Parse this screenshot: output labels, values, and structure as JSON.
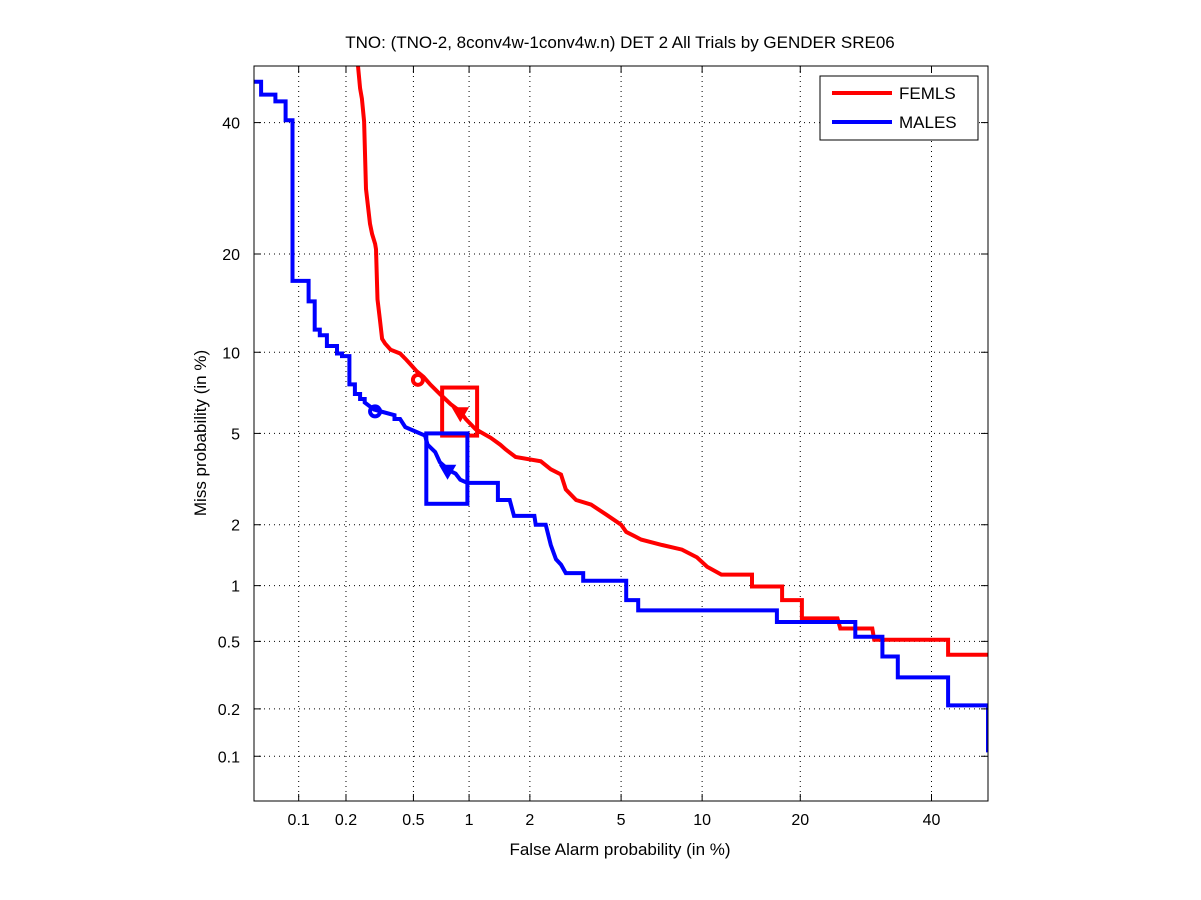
{
  "chart_data": {
    "type": "line",
    "subtype": "DET (probit-scaled axes)",
    "title": "TNO: (TNO-2, 8conv4w-1conv4w.n) DET 2 All Trials by GENDER SRE06",
    "xlabel": "False Alarm probability (in %)",
    "ylabel": "Miss probability (in %)",
    "xscale": "probit",
    "yscale": "probit",
    "xlim": [
      0.05,
      50
    ],
    "ylim": [
      0.05,
      50
    ],
    "grid": true,
    "xticks": [
      0.1,
      0.2,
      0.5,
      1,
      2,
      5,
      10,
      20,
      40
    ],
    "xtick_labels": [
      "0.1",
      "0.2",
      "0.5",
      "1",
      "2",
      "5",
      "10",
      "20",
      "40"
    ],
    "yticks": [
      0.1,
      0.2,
      0.5,
      1,
      2,
      5,
      10,
      20,
      40
    ],
    "ytick_labels": [
      "0.1",
      "0.2",
      "0.5",
      "1",
      "2",
      "5",
      "10",
      "20",
      "40"
    ],
    "legend": {
      "placement": "top-right",
      "entries": [
        "FEMLS",
        "MALES"
      ]
    },
    "series": [
      {
        "name": "FEMLS",
        "color": "#ff0000",
        "points": [
          [
            0.237,
            50.3
          ],
          [
            0.244,
            46
          ],
          [
            0.25,
            44.2
          ],
          [
            0.258,
            40.2
          ],
          [
            0.265,
            29.1
          ],
          [
            0.28,
            24
          ],
          [
            0.288,
            22.6
          ],
          [
            0.3,
            21.3
          ],
          [
            0.304,
            20.6
          ],
          [
            0.31,
            14.8
          ],
          [
            0.32,
            12.9
          ],
          [
            0.33,
            11.1
          ],
          [
            0.344,
            10.7
          ],
          [
            0.37,
            10.2
          ],
          [
            0.42,
            9.9
          ],
          [
            0.45,
            9.5
          ],
          [
            0.48,
            9.1
          ],
          [
            0.52,
            8.6
          ],
          [
            0.57,
            8.2
          ],
          [
            0.62,
            7.7
          ],
          [
            0.7,
            7.1
          ],
          [
            0.8,
            6.5
          ],
          [
            0.9,
            6.1
          ],
          [
            0.96,
            5.7
          ],
          [
            1.08,
            5.2
          ],
          [
            1.29,
            4.8
          ],
          [
            1.44,
            4.5
          ],
          [
            1.53,
            4.3
          ],
          [
            1.71,
            4.0
          ],
          [
            2.25,
            3.84
          ],
          [
            2.5,
            3.55
          ],
          [
            2.78,
            3.37
          ],
          [
            2.92,
            2.9
          ],
          [
            3.24,
            2.6
          ],
          [
            3.76,
            2.48
          ],
          [
            4.35,
            2.23
          ],
          [
            5.0,
            2.0
          ],
          [
            5.24,
            1.85
          ],
          [
            6.0,
            1.7
          ],
          [
            7.2,
            1.6
          ],
          [
            8.5,
            1.52
          ],
          [
            9.6,
            1.39
          ],
          [
            10.4,
            1.25
          ],
          [
            11.6,
            1.14
          ],
          [
            14.5,
            1.14
          ],
          [
            14.5,
            0.99
          ],
          [
            17.8,
            0.99
          ],
          [
            17.8,
            0.84
          ],
          [
            20.2,
            0.84
          ],
          [
            20.2,
            0.67
          ],
          [
            25,
            0.67
          ],
          [
            25.4,
            0.59
          ],
          [
            30.2,
            0.59
          ],
          [
            30.5,
            0.51
          ],
          [
            42.9,
            0.51
          ],
          [
            42.9,
            0.42
          ],
          [
            50.5,
            0.42
          ]
        ],
        "actual_dcf_point": [
          0.53,
          8.0
        ],
        "min_dcf_point": [
          0.9,
          6.0
        ],
        "confidence_box": {
          "x": [
            0.72,
            1.1
          ],
          "y": [
            4.9,
            7.5
          ]
        }
      },
      {
        "name": "MALES",
        "color": "#0000ff",
        "points": [
          [
            0.05,
            47.2
          ],
          [
            0.056,
            47.2
          ],
          [
            0.056,
            44.9
          ],
          [
            0.07,
            44.9
          ],
          [
            0.07,
            43.7
          ],
          [
            0.082,
            43.7
          ],
          [
            0.082,
            40.4
          ],
          [
            0.091,
            40.4
          ],
          [
            0.091,
            16.8
          ],
          [
            0.116,
            16.8
          ],
          [
            0.116,
            14.6
          ],
          [
            0.127,
            14.6
          ],
          [
            0.127,
            11.9
          ],
          [
            0.137,
            11.9
          ],
          [
            0.137,
            11.4
          ],
          [
            0.152,
            11.4
          ],
          [
            0.152,
            10.5
          ],
          [
            0.176,
            10.5
          ],
          [
            0.176,
            9.9
          ],
          [
            0.189,
            9.9
          ],
          [
            0.189,
            9.7
          ],
          [
            0.21,
            9.7
          ],
          [
            0.21,
            7.7
          ],
          [
            0.227,
            7.7
          ],
          [
            0.227,
            7.1
          ],
          [
            0.244,
            7.1
          ],
          [
            0.244,
            6.8
          ],
          [
            0.26,
            6.8
          ],
          [
            0.26,
            6.6
          ],
          [
            0.296,
            6.2
          ],
          [
            0.39,
            5.9
          ],
          [
            0.39,
            5.7
          ],
          [
            0.42,
            5.7
          ],
          [
            0.45,
            5.3
          ],
          [
            0.58,
            4.9
          ],
          [
            0.6,
            4.5
          ],
          [
            0.66,
            4.2
          ],
          [
            0.7,
            3.8
          ],
          [
            0.79,
            3.5
          ],
          [
            0.85,
            3.4
          ],
          [
            0.9,
            3.2
          ],
          [
            0.98,
            3.1
          ],
          [
            1.4,
            3.1
          ],
          [
            1.4,
            2.6
          ],
          [
            1.6,
            2.6
          ],
          [
            1.68,
            2.2
          ],
          [
            2.1,
            2.2
          ],
          [
            2.13,
            2.0
          ],
          [
            2.37,
            2.0
          ],
          [
            2.5,
            1.6
          ],
          [
            2.64,
            1.36
          ],
          [
            2.78,
            1.28
          ],
          [
            2.92,
            1.16
          ],
          [
            3.48,
            1.16
          ],
          [
            3.48,
            1.06
          ],
          [
            5.24,
            1.06
          ],
          [
            5.24,
            0.84
          ],
          [
            5.84,
            0.84
          ],
          [
            5.84,
            0.74
          ],
          [
            17.2,
            0.74
          ],
          [
            17.2,
            0.64
          ],
          [
            27.6,
            0.64
          ],
          [
            27.6,
            0.53
          ],
          [
            31.8,
            0.53
          ],
          [
            31.8,
            0.41
          ],
          [
            34.3,
            0.41
          ],
          [
            34.3,
            0.31
          ],
          [
            42.9,
            0.31
          ],
          [
            42.9,
            0.21
          ],
          [
            50.5,
            0.21
          ],
          [
            50.5,
            0.106
          ]
        ],
        "actual_dcf_point": [
          0.3,
          6.1
        ],
        "min_dcf_point": [
          0.77,
          3.5
        ],
        "confidence_box": {
          "x": [
            0.59,
            0.98
          ],
          "y": [
            2.5,
            5.0
          ]
        }
      }
    ]
  }
}
